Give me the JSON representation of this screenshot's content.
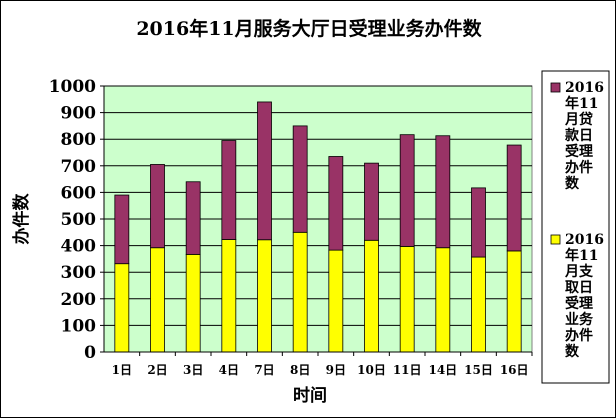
{
  "chart_data": {
    "type": "bar",
    "stacked": true,
    "title": "2016年11月服务大厅日受理业务办件数",
    "xlabel": "时间",
    "ylabel": "办件数",
    "ylim": [
      0,
      1000
    ],
    "yticks": [
      0,
      100,
      200,
      300,
      400,
      500,
      600,
      700,
      800,
      900,
      1000
    ],
    "grid": true,
    "legend_position": "right",
    "categories": [
      "1日",
      "2日",
      "3日",
      "4日",
      "7日",
      "8日",
      "9日",
      "10日",
      "11日",
      "14日",
      "15日",
      "16日"
    ],
    "series": [
      {
        "name": "2016年11月支取日受理业务办件数",
        "color": "#ffff00",
        "values": [
          332,
          392,
          367,
          423,
          422,
          450,
          383,
          420,
          397,
          392,
          357,
          380
        ]
      },
      {
        "name": "2016年11月贷款日受理办件数",
        "color": "#993366",
        "values": [
          258,
          313,
          273,
          372,
          518,
          400,
          352,
          290,
          420,
          421,
          260,
          398
        ]
      }
    ]
  }
}
